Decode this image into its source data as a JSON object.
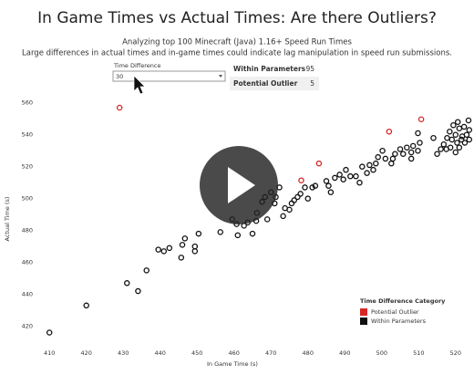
{
  "chart_data": {
    "type": "scatter",
    "title": "In Game Times vs Actual Times: Are there Outliers?",
    "subtitle": "Analyzing top 100 Minecraft (Java) 1.16+ Speed Run Times",
    "description": "Large differences in actual times and in-game times could indicate lag manipulation in speed run submissions.",
    "x_label": "In Game Time (s)",
    "y_label": "Actual Time (s)",
    "xlim": [
      406,
      524
    ],
    "xticks": [
      410,
      420,
      430,
      440,
      450,
      460,
      470,
      480,
      490,
      500,
      510,
      520
    ],
    "ylim": [
      410,
      565
    ],
    "yticks": [
      420,
      440,
      460,
      480,
      500,
      520,
      540,
      560
    ],
    "grid": false,
    "legend_title": "Time Difference Category",
    "legend_position": "lower right",
    "series": [
      {
        "name": "Potential Outlier",
        "color": "#d62728",
        "x": [
          429,
          478.2,
          483,
          502,
          510.7
        ],
        "y": [
          557,
          511.4,
          522,
          542,
          549.7
        ]
      },
      {
        "name": "Within Parameters",
        "color": "#111111",
        "x": [
          410,
          420,
          431,
          434,
          436.3,
          439.5,
          441,
          442.5,
          445.7,
          446,
          446.7,
          449.4,
          450.4,
          449.4,
          456.3,
          459.5,
          460.7,
          461,
          462.7,
          463.7,
          465,
          466,
          466.2,
          467.6,
          468.4,
          469,
          470,
          471,
          471.3,
          472.3,
          473.3,
          473.8,
          475,
          475.6,
          476.3,
          477.2,
          478,
          479.2,
          480,
          481.2,
          482,
          485,
          485.6,
          486.2,
          487.3,
          488.6,
          489.6,
          490.3,
          491.5,
          493,
          494,
          494.7,
          496,
          496.7,
          497.7,
          498.4,
          499,
          500.2,
          501,
          502.6,
          503,
          503.6,
          505,
          505.8,
          506.8,
          508,
          508.5,
          509.8,
          508,
          509.8,
          510.3,
          514,
          517.7,
          518.4,
          519,
          520,
          520.6,
          521,
          521.6,
          522.3,
          523,
          523.5,
          516.8,
          516,
          515,
          517.5,
          518.6,
          520.4,
          521,
          520,
          522.5,
          523.7,
          523.7,
          519.4,
          521.8
        ],
        "y": [
          416,
          433,
          447,
          442,
          455,
          468,
          467,
          469,
          463,
          471,
          475,
          470,
          478,
          467,
          479,
          487,
          484,
          477,
          483,
          485,
          478,
          486,
          491,
          498,
          501,
          487,
          504,
          497,
          501,
          507,
          489,
          494,
          493,
          497,
          499,
          501,
          503,
          507,
          500,
          507,
          508,
          511,
          508,
          504,
          513,
          515,
          512,
          518,
          514,
          514,
          510,
          520,
          516,
          521,
          518,
          522,
          526,
          530,
          525,
          522,
          525,
          528,
          531,
          528,
          532,
          529,
          533,
          530,
          525,
          541,
          535,
          538,
          538,
          542,
          537,
          540,
          548,
          544,
          537,
          545,
          540,
          549,
          534,
          531,
          528,
          531,
          532,
          535,
          532,
          529,
          535,
          543,
          537,
          546,
          539
        ]
      }
    ]
  },
  "filter": {
    "label": "Time Difference",
    "value": "30"
  },
  "summary": {
    "rows": [
      [
        "Within Parameters",
        "95"
      ],
      [
        "Potential Outlier",
        "5"
      ]
    ]
  }
}
